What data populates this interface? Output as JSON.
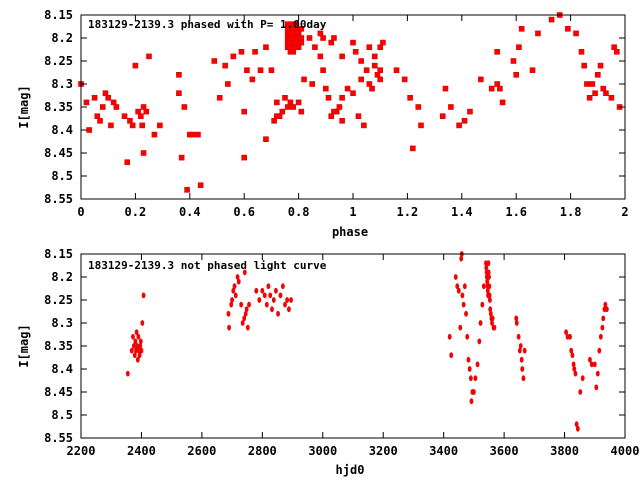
{
  "chart_data": [
    {
      "type": "scatter",
      "title": "183129-2139.3 phased with P=  1.00day",
      "xlabel": "phase",
      "ylabel": "I[mag]",
      "xlim": [
        0,
        2
      ],
      "ylim": [
        8.55,
        8.15
      ],
      "y_inverted": true,
      "xticks": [
        0,
        0.2,
        0.4,
        0.6,
        0.8,
        1,
        1.2,
        1.4,
        1.6,
        1.8,
        2
      ],
      "xtick_labels": [
        "0",
        "0.2",
        "0.4",
        "0.6",
        "0.8",
        "1",
        "1.2",
        "1.4",
        "1.6",
        "1.8",
        "2"
      ],
      "yticks": [
        8.15,
        8.2,
        8.25,
        8.3,
        8.35,
        8.4,
        8.45,
        8.5,
        8.55
      ],
      "ytick_labels": [
        "8.15",
        "8.2",
        "8.25",
        "8.3",
        "8.35",
        "8.4",
        "8.45",
        "8.5",
        "8.55"
      ],
      "marker_color": "#ff0000",
      "grid": false,
      "points": [
        [
          0.0,
          8.3
        ],
        [
          0.02,
          8.34
        ],
        [
          0.03,
          8.4
        ],
        [
          0.05,
          8.33
        ],
        [
          0.06,
          8.37
        ],
        [
          0.07,
          8.38
        ],
        [
          0.08,
          8.35
        ],
        [
          0.09,
          8.32
        ],
        [
          0.1,
          8.33
        ],
        [
          0.11,
          8.39
        ],
        [
          0.12,
          8.34
        ],
        [
          0.13,
          8.35
        ],
        [
          0.16,
          8.37
        ],
        [
          0.17,
          8.47
        ],
        [
          0.18,
          8.38
        ],
        [
          0.19,
          8.39
        ],
        [
          0.2,
          8.26
        ],
        [
          0.21,
          8.36
        ],
        [
          0.22,
          8.37
        ],
        [
          0.225,
          8.39
        ],
        [
          0.23,
          8.35
        ],
        [
          0.23,
          8.45
        ],
        [
          0.24,
          8.36
        ],
        [
          0.25,
          8.24
        ],
        [
          0.27,
          8.41
        ],
        [
          0.29,
          8.39
        ],
        [
          0.36,
          8.28
        ],
        [
          0.36,
          8.32
        ],
        [
          0.37,
          8.46
        ],
        [
          0.38,
          8.35
        ],
        [
          0.39,
          8.53
        ],
        [
          0.4,
          8.41
        ],
        [
          0.41,
          8.41
        ],
        [
          0.43,
          8.41
        ],
        [
          0.44,
          8.52
        ],
        [
          0.49,
          8.25
        ],
        [
          0.51,
          8.33
        ],
        [
          0.53,
          8.26
        ],
        [
          0.54,
          8.3
        ],
        [
          0.56,
          8.24
        ],
        [
          0.59,
          8.23
        ],
        [
          0.6,
          8.36
        ],
        [
          0.6,
          8.46
        ],
        [
          0.61,
          8.27
        ],
        [
          0.63,
          8.29
        ],
        [
          0.64,
          8.23
        ],
        [
          0.66,
          8.27
        ],
        [
          0.68,
          8.22
        ],
        [
          0.68,
          8.42
        ],
        [
          0.7,
          8.27
        ],
        [
          0.71,
          8.38
        ],
        [
          0.72,
          8.37
        ],
        [
          0.72,
          8.34
        ],
        [
          0.73,
          8.37
        ],
        [
          0.74,
          8.36
        ],
        [
          0.75,
          8.33
        ],
        [
          0.76,
          8.35
        ],
        [
          0.77,
          8.34
        ],
        [
          0.78,
          8.35
        ],
        [
          0.8,
          8.34
        ],
        [
          0.81,
          8.36
        ],
        [
          0.82,
          8.29
        ],
        [
          0.84,
          8.2
        ],
        [
          0.85,
          8.3
        ],
        [
          0.86,
          8.22
        ],
        [
          0.88,
          8.24
        ],
        [
          0.89,
          8.27
        ],
        [
          0.9,
          8.31
        ],
        [
          0.91,
          8.33
        ],
        [
          0.92,
          8.37
        ],
        [
          0.93,
          8.36
        ],
        [
          0.94,
          8.36
        ],
        [
          0.95,
          8.35
        ],
        [
          0.96,
          8.33
        ],
        [
          0.96,
          8.38
        ],
        [
          0.98,
          8.31
        ],
        [
          1.0,
          8.32
        ],
        [
          1.02,
          8.37
        ],
        [
          1.03,
          8.29
        ],
        [
          1.04,
          8.39
        ],
        [
          1.05,
          8.27
        ],
        [
          1.06,
          8.3
        ],
        [
          1.07,
          8.31
        ],
        [
          0.76,
          8.17
        ],
        [
          0.76,
          8.18
        ],
        [
          0.76,
          8.19
        ],
        [
          0.76,
          8.2
        ],
        [
          0.76,
          8.21
        ],
        [
          0.76,
          8.22
        ],
        [
          0.77,
          8.17
        ],
        [
          0.77,
          8.19
        ],
        [
          0.77,
          8.2
        ],
        [
          0.77,
          8.22
        ],
        [
          0.77,
          8.23
        ],
        [
          0.78,
          8.17
        ],
        [
          0.78,
          8.18
        ],
        [
          0.78,
          8.19
        ],
        [
          0.78,
          8.21
        ],
        [
          0.78,
          8.22
        ],
        [
          0.78,
          8.23
        ],
        [
          0.79,
          8.17
        ],
        [
          0.79,
          8.18
        ],
        [
          0.79,
          8.2
        ],
        [
          0.79,
          8.21
        ],
        [
          0.79,
          8.22
        ],
        [
          0.8,
          8.18
        ],
        [
          0.8,
          8.19
        ],
        [
          0.8,
          8.2
        ],
        [
          0.8,
          8.22
        ],
        [
          0.81,
          8.18
        ],
        [
          0.81,
          8.2
        ],
        [
          0.81,
          8.21
        ],
        [
          0.88,
          8.19
        ],
        [
          0.89,
          8.2
        ],
        [
          0.92,
          8.21
        ],
        [
          0.93,
          8.2
        ],
        [
          0.96,
          8.24
        ],
        [
          1.0,
          8.21
        ],
        [
          1.01,
          8.23
        ],
        [
          1.03,
          8.25
        ],
        [
          1.06,
          8.22
        ],
        [
          1.08,
          8.24
        ],
        [
          1.08,
          8.26
        ],
        [
          1.09,
          8.28
        ],
        [
          1.1,
          8.27
        ],
        [
          1.1,
          8.29
        ],
        [
          1.1,
          8.22
        ],
        [
          1.11,
          8.21
        ],
        [
          1.16,
          8.27
        ],
        [
          1.19,
          8.29
        ],
        [
          1.21,
          8.33
        ],
        [
          1.22,
          8.44
        ],
        [
          1.24,
          8.35
        ],
        [
          1.25,
          8.39
        ],
        [
          1.33,
          8.37
        ],
        [
          1.34,
          8.31
        ],
        [
          1.36,
          8.35
        ],
        [
          1.39,
          8.39
        ],
        [
          1.41,
          8.38
        ],
        [
          1.43,
          8.36
        ],
        [
          1.47,
          8.29
        ],
        [
          1.51,
          8.31
        ],
        [
          1.53,
          8.3
        ],
        [
          1.54,
          8.31
        ],
        [
          1.55,
          8.34
        ],
        [
          1.53,
          8.23
        ],
        [
          1.59,
          8.25
        ],
        [
          1.6,
          8.28
        ],
        [
          1.61,
          8.22
        ],
        [
          1.62,
          8.18
        ],
        [
          1.66,
          8.27
        ],
        [
          1.68,
          8.19
        ],
        [
          1.73,
          8.16
        ],
        [
          1.76,
          8.15
        ],
        [
          1.79,
          8.18
        ],
        [
          1.82,
          8.19
        ],
        [
          1.84,
          8.23
        ],
        [
          1.85,
          8.26
        ],
        [
          1.86,
          8.3
        ],
        [
          1.87,
          8.33
        ],
        [
          1.88,
          8.3
        ],
        [
          1.89,
          8.32
        ],
        [
          1.9,
          8.28
        ],
        [
          1.91,
          8.26
        ],
        [
          1.92,
          8.31
        ],
        [
          1.93,
          8.32
        ],
        [
          1.95,
          8.33
        ],
        [
          1.96,
          8.22
        ],
        [
          1.97,
          8.23
        ],
        [
          1.98,
          8.35
        ]
      ]
    },
    {
      "type": "scatter",
      "title": "183129-2139.3 not phased light curve",
      "xlabel": "hjd0",
      "ylabel": "I[mag]",
      "xlim": [
        2200,
        4000
      ],
      "ylim": [
        8.55,
        8.15
      ],
      "y_inverted": true,
      "xticks": [
        2200,
        2400,
        2600,
        2800,
        3000,
        3200,
        3400,
        3600,
        3800,
        4000
      ],
      "xtick_labels": [
        "2200",
        "2400",
        "2600",
        "2800",
        "3000",
        "3200",
        "3400",
        "3600",
        "3800",
        "4000"
      ],
      "yticks": [
        8.15,
        8.2,
        8.25,
        8.3,
        8.35,
        8.4,
        8.45,
        8.5,
        8.55
      ],
      "ytick_labels": [
        "8.15",
        "8.2",
        "8.25",
        "8.3",
        "8.35",
        "8.4",
        "8.45",
        "8.5",
        "8.55"
      ],
      "marker_color": "#ff0000",
      "grid": false,
      "points": [
        [
          2355,
          8.41
        ],
        [
          2368,
          8.36
        ],
        [
          2372,
          8.33
        ],
        [
          2375,
          8.35
        ],
        [
          2378,
          8.37
        ],
        [
          2380,
          8.34
        ],
        [
          2382,
          8.36
        ],
        [
          2384,
          8.32
        ],
        [
          2386,
          8.35
        ],
        [
          2388,
          8.38
        ],
        [
          2390,
          8.33
        ],
        [
          2392,
          8.36
        ],
        [
          2394,
          8.37
        ],
        [
          2396,
          8.35
        ],
        [
          2398,
          8.34
        ],
        [
          2400,
          8.36
        ],
        [
          2403,
          8.3
        ],
        [
          2407,
          8.24
        ],
        [
          2688,
          8.28
        ],
        [
          2690,
          8.31
        ],
        [
          2697,
          8.26
        ],
        [
          2700,
          8.25
        ],
        [
          2704,
          8.23
        ],
        [
          2708,
          8.22
        ],
        [
          2712,
          8.24
        ],
        [
          2718,
          8.2
        ],
        [
          2722,
          8.21
        ],
        [
          2730,
          8.26
        ],
        [
          2735,
          8.3
        ],
        [
          2740,
          8.29
        ],
        [
          2742,
          8.19
        ],
        [
          2745,
          8.28
        ],
        [
          2748,
          8.27
        ],
        [
          2752,
          8.31
        ],
        [
          2756,
          8.26
        ],
        [
          2780,
          8.23
        ],
        [
          2790,
          8.25
        ],
        [
          2800,
          8.23
        ],
        [
          2808,
          8.24
        ],
        [
          2815,
          8.26
        ],
        [
          2820,
          8.22
        ],
        [
          2826,
          8.24
        ],
        [
          2832,
          8.27
        ],
        [
          2838,
          8.25
        ],
        [
          2845,
          8.23
        ],
        [
          2852,
          8.28
        ],
        [
          2860,
          8.24
        ],
        [
          2868,
          8.22
        ],
        [
          2875,
          8.26
        ],
        [
          2882,
          8.25
        ],
        [
          2888,
          8.27
        ],
        [
          2895,
          8.25
        ],
        [
          3420,
          8.33
        ],
        [
          3425,
          8.37
        ],
        [
          3440,
          8.2
        ],
        [
          3445,
          8.22
        ],
        [
          3450,
          8.23
        ],
        [
          3455,
          8.31
        ],
        [
          3458,
          8.16
        ],
        [
          3460,
          8.15
        ],
        [
          3462,
          8.24
        ],
        [
          3466,
          8.26
        ],
        [
          3470,
          8.22
        ],
        [
          3474,
          8.28
        ],
        [
          3478,
          8.33
        ],
        [
          3482,
          8.38
        ],
        [
          3486,
          8.4
        ],
        [
          3490,
          8.42
        ],
        [
          3492,
          8.47
        ],
        [
          3495,
          8.45
        ],
        [
          3500,
          8.45
        ],
        [
          3505,
          8.42
        ],
        [
          3512,
          8.39
        ],
        [
          3518,
          8.34
        ],
        [
          3522,
          8.3
        ],
        [
          3528,
          8.26
        ],
        [
          3533,
          8.22
        ],
        [
          3540,
          8.17
        ],
        [
          3541,
          8.18
        ],
        [
          3542,
          8.19
        ],
        [
          3543,
          8.2
        ],
        [
          3544,
          8.21
        ],
        [
          3545,
          8.22
        ],
        [
          3546,
          8.23
        ],
        [
          3547,
          8.24
        ],
        [
          3548,
          8.17
        ],
        [
          3549,
          8.19
        ],
        [
          3550,
          8.2
        ],
        [
          3551,
          8.22
        ],
        [
          3552,
          8.24
        ],
        [
          3553,
          8.25
        ],
        [
          3554,
          8.27
        ],
        [
          3556,
          8.28
        ],
        [
          3558,
          8.29
        ],
        [
          3560,
          8.3
        ],
        [
          3562,
          8.29
        ],
        [
          3565,
          8.31
        ],
        [
          3568,
          8.31
        ],
        [
          3640,
          8.29
        ],
        [
          3642,
          8.3
        ],
        [
          3648,
          8.33
        ],
        [
          3652,
          8.36
        ],
        [
          3655,
          8.35
        ],
        [
          3658,
          8.38
        ],
        [
          3660,
          8.4
        ],
        [
          3664,
          8.42
        ],
        [
          3668,
          8.36
        ],
        [
          3805,
          8.32
        ],
        [
          3810,
          8.33
        ],
        [
          3818,
          8.33
        ],
        [
          3822,
          8.36
        ],
        [
          3826,
          8.37
        ],
        [
          3830,
          8.39
        ],
        [
          3832,
          8.4
        ],
        [
          3836,
          8.41
        ],
        [
          3840,
          8.52
        ],
        [
          3844,
          8.53
        ],
        [
          3852,
          8.45
        ],
        [
          3860,
          8.42
        ],
        [
          3884,
          8.38
        ],
        [
          3890,
          8.39
        ],
        [
          3900,
          8.39
        ],
        [
          3905,
          8.44
        ],
        [
          3910,
          8.41
        ],
        [
          3915,
          8.36
        ],
        [
          3920,
          8.33
        ],
        [
          3925,
          8.31
        ],
        [
          3928,
          8.29
        ],
        [
          3932,
          8.27
        ],
        [
          3935,
          8.26
        ],
        [
          3940,
          8.27
        ]
      ]
    }
  ]
}
